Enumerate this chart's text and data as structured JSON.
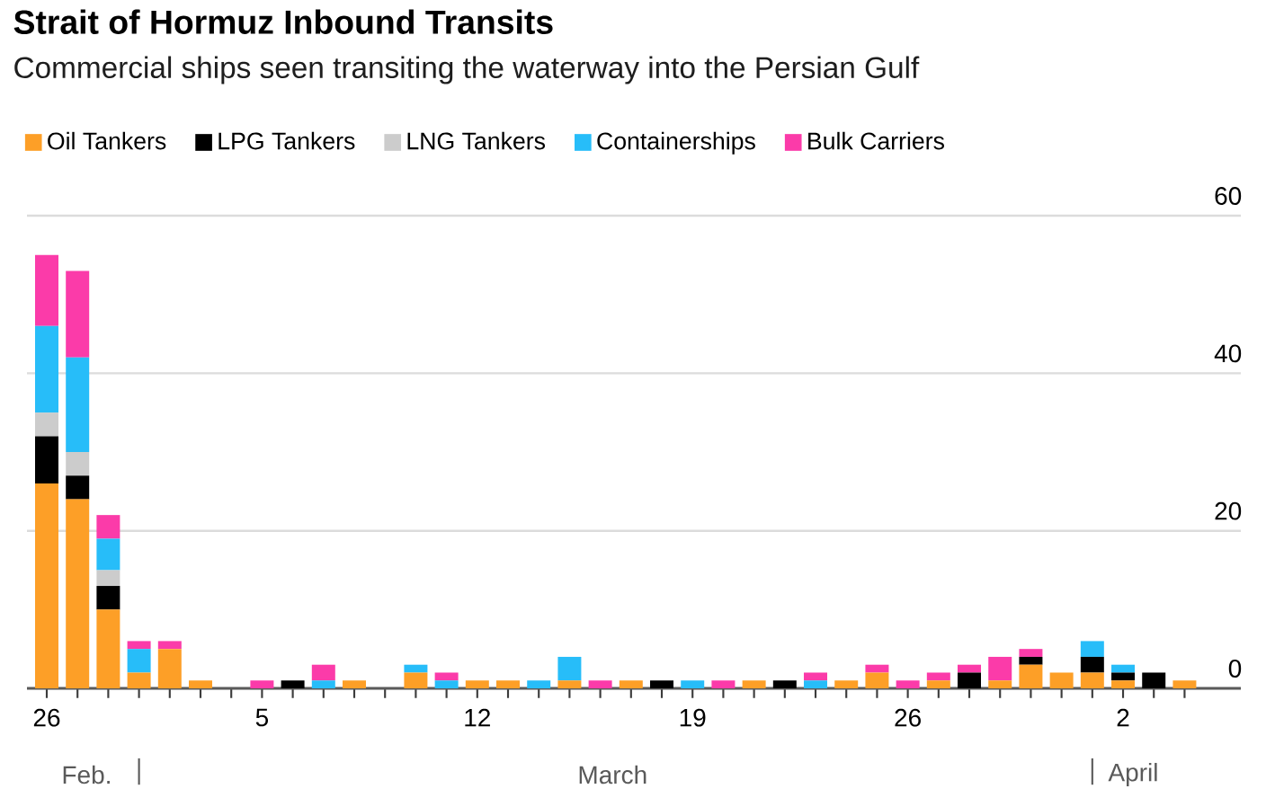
{
  "chart_data": {
    "type": "bar",
    "stacked": true,
    "title": "Strait of Hormuz Inbound Transits",
    "subtitle": "Commercial ships seen transiting the waterway into the Persian Gulf",
    "categories": [
      "26",
      null,
      null,
      null,
      null,
      null,
      null,
      "5",
      null,
      null,
      null,
      null,
      null,
      null,
      "12",
      null,
      null,
      null,
      null,
      null,
      null,
      "19",
      null,
      null,
      null,
      null,
      null,
      null,
      "26",
      null,
      null,
      null,
      null,
      null,
      null,
      "2",
      null,
      null
    ],
    "series": [
      {
        "name": "Oil Tankers",
        "color": "#fd9f27",
        "values": [
          26,
          24,
          10,
          2,
          5,
          1,
          0,
          0,
          0,
          0,
          1,
          0,
          2,
          0,
          1,
          1,
          0,
          1,
          0,
          1,
          0,
          0,
          0,
          1,
          0,
          0,
          1,
          2,
          0,
          1,
          0,
          1,
          3,
          2,
          2,
          1,
          0,
          1
        ]
      },
      {
        "name": "LPG Tankers",
        "color": "#000000",
        "values": [
          6,
          3,
          3,
          0,
          0,
          0,
          0,
          0,
          1,
          0,
          0,
          0,
          0,
          0,
          0,
          0,
          0,
          0,
          0,
          0,
          1,
          0,
          0,
          0,
          1,
          0,
          0,
          0,
          0,
          0,
          2,
          0,
          1,
          0,
          2,
          1,
          2,
          0
        ]
      },
      {
        "name": "LNG Tankers",
        "color": "#cccccc",
        "values": [
          3,
          3,
          2,
          0,
          0,
          0,
          0,
          0,
          0,
          0,
          0,
          0,
          0,
          0,
          0,
          0,
          0,
          0,
          0,
          0,
          0,
          0,
          0,
          0,
          0,
          0,
          0,
          0,
          0,
          0,
          0,
          0,
          0,
          0,
          0,
          0,
          0,
          0
        ]
      },
      {
        "name": "Containerships",
        "color": "#27bdf9",
        "values": [
          11,
          12,
          4,
          3,
          0,
          0,
          0,
          0,
          0,
          1,
          0,
          0,
          1,
          1,
          0,
          0,
          1,
          3,
          0,
          0,
          0,
          1,
          0,
          0,
          0,
          1,
          0,
          0,
          0,
          0,
          0,
          0,
          0,
          0,
          2,
          1,
          0,
          0
        ]
      },
      {
        "name": "Bulk Carriers",
        "color": "#fb3ba9",
        "values": [
          9,
          11,
          3,
          1,
          1,
          0,
          0,
          1,
          0,
          2,
          0,
          0,
          0,
          1,
          0,
          0,
          0,
          0,
          1,
          0,
          0,
          0,
          1,
          0,
          0,
          1,
          0,
          1,
          1,
          1,
          1,
          3,
          1,
          0,
          0,
          0,
          0,
          0
        ]
      }
    ],
    "annotations": [
      "Feb.",
      "March",
      "April"
    ],
    "ylim": [
      0,
      60
    ],
    "yticks": [
      0,
      20,
      40,
      60
    ],
    "grid": "y",
    "legend": "top left"
  }
}
